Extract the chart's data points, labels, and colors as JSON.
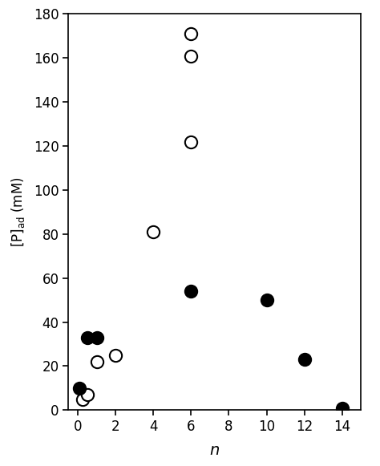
{
  "open_circles_x": [
    0.25,
    0.5,
    1.0,
    2.0,
    4.0,
    6.0,
    6.0,
    6.0
  ],
  "open_circles_y": [
    5.0,
    7.0,
    22.0,
    25.0,
    81.0,
    122.0,
    161.0,
    171.0
  ],
  "filled_circles_x": [
    0.1,
    0.5,
    1.0,
    6.0,
    10.0,
    12.0,
    14.0
  ],
  "filled_circles_y": [
    10.0,
    33.0,
    33.0,
    54.0,
    50.0,
    23.0,
    1.0
  ],
  "xlabel": "n",
  "ylabel": "[P]$_{\\mathrm{ad}}$ (mM)",
  "xlim": [
    -0.5,
    15.0
  ],
  "ylim": [
    0,
    180
  ],
  "xticks": [
    0,
    2,
    4,
    6,
    8,
    10,
    12,
    14
  ],
  "yticks": [
    0,
    20,
    40,
    60,
    80,
    100,
    120,
    140,
    160,
    180
  ],
  "marker_size": 11,
  "open_linewidth": 1.5,
  "background_color": "#ffffff"
}
